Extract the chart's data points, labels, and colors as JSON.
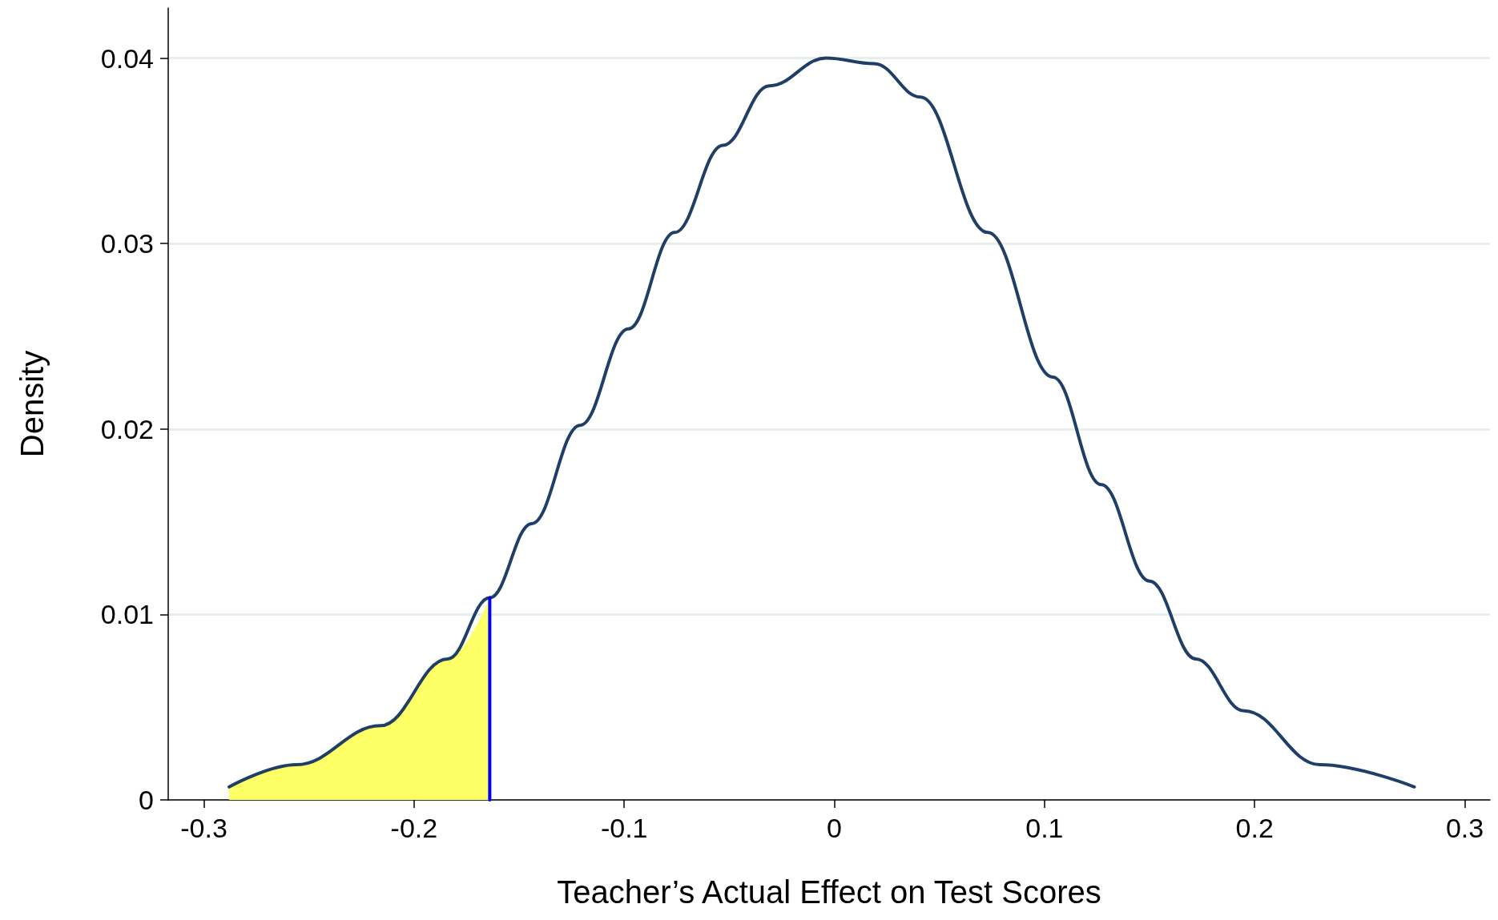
{
  "chart_data": {
    "type": "line",
    "xlabel": "Teacher’s Actual Effect on Test Scores",
    "ylabel": "Density",
    "xlim": [
      -0.317,
      0.312
    ],
    "ylim": [
      0,
      0.0427
    ],
    "xticks": [
      -0.3,
      -0.2,
      -0.1,
      0,
      0.1,
      0.2,
      0.3
    ],
    "yticks": [
      0,
      0.01,
      0.02,
      0.03,
      0.04
    ],
    "grid": "y",
    "marker": "none",
    "line_style": "solid",
    "series": [
      {
        "type": "area",
        "color": "#ffff66",
        "x": [
          -0.288,
          -0.256,
          -0.216,
          -0.184,
          -0.164
        ],
        "values": [
          0.0007,
          0.0019,
          0.004,
          0.0076,
          0.0109
        ]
      },
      {
        "color": "#1f3f66",
        "x": [
          -0.288,
          -0.256,
          -0.216,
          -0.184,
          -0.164,
          -0.144,
          -0.121,
          -0.098,
          -0.076,
          -0.053,
          -0.031,
          -0.004,
          0.019,
          0.041,
          0.073,
          0.104,
          0.127,
          0.15,
          0.172,
          0.195,
          0.231,
          0.276
        ],
        "values": [
          0.0007,
          0.0019,
          0.004,
          0.0076,
          0.0109,
          0.0149,
          0.0202,
          0.0254,
          0.0306,
          0.0353,
          0.0385,
          0.04,
          0.0397,
          0.0379,
          0.0306,
          0.0228,
          0.017,
          0.0118,
          0.0076,
          0.0048,
          0.0019,
          0.0007
        ]
      },
      {
        "type": "line",
        "color": "#0000ff",
        "x": [
          -0.164,
          -0.164
        ],
        "values": [
          0,
          0.0109
        ]
      }
    ]
  }
}
